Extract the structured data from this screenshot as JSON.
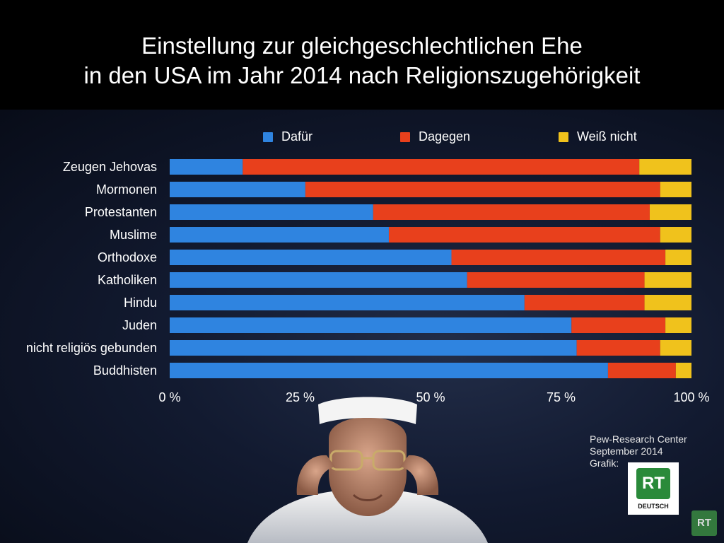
{
  "header": {
    "title_line1": "Einstellung zur gleichgeschlechtlichen Ehe",
    "title_line2": "in den USA im Jahr 2014 nach Religionszugehörigkeit"
  },
  "legend": [
    {
      "label": "Dafür",
      "color": "#2f84e0"
    },
    {
      "label": "Dagegen",
      "color": "#e8401c"
    },
    {
      "label": "Weiß nicht",
      "color": "#f0c21c"
    }
  ],
  "chart_data": {
    "type": "bar",
    "orientation": "horizontal",
    "stacked": true,
    "categories": [
      "Zeugen Jehovas",
      "Mormonen",
      "Protestanten",
      "Muslime",
      "Orthodoxe",
      "Katholiken",
      "Hindu",
      "Juden",
      "nicht religiös gebunden",
      "Buddhisten"
    ],
    "series": [
      {
        "name": "Dafür",
        "color": "#2f84e0",
        "values": [
          14,
          26,
          39,
          42,
          54,
          57,
          68,
          77,
          78,
          84
        ]
      },
      {
        "name": "Dagegen",
        "color": "#e8401c",
        "values": [
          76,
          68,
          53,
          52,
          41,
          34,
          23,
          18,
          16,
          13
        ]
      },
      {
        "name": "Weiß nicht",
        "color": "#f0c21c",
        "values": [
          10,
          6,
          8,
          6,
          5,
          9,
          9,
          5,
          6,
          3
        ]
      }
    ],
    "xlim": [
      0,
      100
    ],
    "x_ticks": [
      "0 %",
      "25 %",
      "50 %",
      "75 %",
      "100 %"
    ],
    "x_tick_values": [
      0,
      25,
      50,
      75,
      100
    ],
    "legend_position": "top",
    "grid": false
  },
  "source": {
    "line1": "Pew-Research Center",
    "line2": "September 2014",
    "line3": "Grafik:"
  },
  "logo": {
    "text": "RT",
    "subtext": "DEUTSCH"
  }
}
